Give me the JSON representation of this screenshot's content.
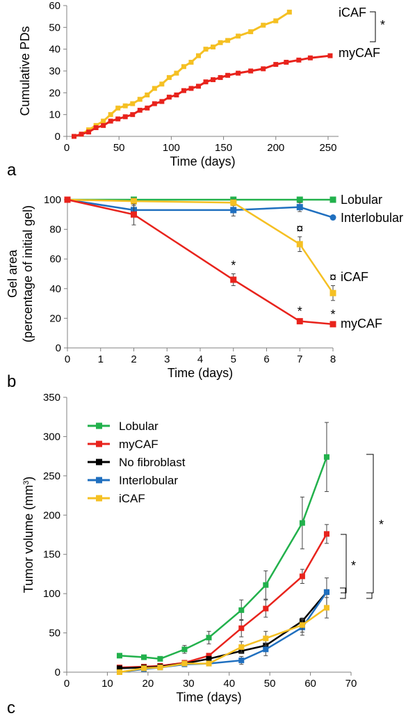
{
  "chart_data": [
    {
      "panel": "a",
      "type": "line",
      "xlabel": "Time (days)",
      "ylabel": "Cumulative PDs",
      "xlim": [
        0,
        260
      ],
      "ylim": [
        0,
        60
      ],
      "xticks": [
        0,
        50,
        100,
        150,
        200,
        250
      ],
      "yticks": [
        0,
        10,
        20,
        30,
        40,
        50,
        60
      ],
      "series": [
        {
          "name": "iCAF",
          "color": "#f5c023",
          "x": [
            7,
            14,
            21,
            28,
            35,
            42,
            49,
            56,
            63,
            70,
            77,
            84,
            91,
            98,
            105,
            112,
            119,
            126,
            133,
            140,
            147,
            154,
            164,
            176,
            188,
            200,
            213
          ],
          "y": [
            0,
            1,
            3,
            5,
            7,
            10,
            13,
            14,
            15,
            17,
            19,
            22,
            24,
            27,
            29,
            32,
            34,
            37,
            40,
            41,
            43,
            44,
            46,
            48,
            51,
            53,
            57
          ]
        },
        {
          "name": "myCAF",
          "color": "#e8231c",
          "x": [
            7,
            14,
            21,
            28,
            35,
            42,
            49,
            56,
            63,
            70,
            77,
            84,
            91,
            98,
            105,
            112,
            119,
            126,
            133,
            140,
            147,
            154,
            164,
            176,
            188,
            200,
            210,
            222,
            233,
            252
          ],
          "y": [
            0,
            1,
            2,
            4,
            5,
            7,
            8,
            9,
            10,
            12,
            13,
            15,
            16,
            18,
            19,
            21,
            22,
            23,
            25,
            26,
            27,
            28,
            29,
            30,
            31,
            33,
            34,
            35,
            36,
            37
          ]
        }
      ],
      "annotations": [
        "*"
      ],
      "grid": false
    },
    {
      "panel": "b",
      "type": "line",
      "xlabel": "Time (days)",
      "ylabel_lines": [
        "Gel area",
        "(percentage of initial gel)"
      ],
      "xlim": [
        0,
        8
      ],
      "ylim": [
        0,
        100
      ],
      "xticks": [
        0,
        1,
        2,
        3,
        4,
        5,
        6,
        7,
        8
      ],
      "yticks": [
        0,
        20,
        40,
        60,
        80,
        100
      ],
      "series": [
        {
          "name": "Lobular",
          "color": "#22b14c",
          "x": [
            0,
            2,
            5,
            7,
            8
          ],
          "y": [
            100,
            100,
            100,
            100,
            100
          ],
          "err": [
            0,
            1,
            1,
            1,
            0
          ]
        },
        {
          "name": "Interlobular",
          "color": "#1f6fbf",
          "x": [
            0,
            2,
            5,
            7,
            8
          ],
          "y": [
            100,
            93,
            93,
            95,
            88
          ],
          "err": [
            0,
            3,
            4,
            3,
            0
          ]
        },
        {
          "name": "iCAF",
          "color": "#f5c023",
          "x": [
            0,
            2,
            5,
            7,
            8
          ],
          "y": [
            100,
            99,
            98,
            70,
            37
          ],
          "err": [
            0,
            2,
            2,
            5,
            5
          ]
        },
        {
          "name": "myCAF",
          "color": "#e8231c",
          "x": [
            0,
            2,
            5,
            7,
            8
          ],
          "y": [
            100,
            90,
            46,
            18,
            16
          ],
          "err": [
            0,
            7,
            4,
            1,
            1
          ]
        }
      ],
      "annotations": [
        {
          "x": 5,
          "y": 46,
          "text": "*"
        },
        {
          "x": 7,
          "y": 18,
          "text": "*"
        },
        {
          "x": 8,
          "y": 16,
          "text": "*"
        },
        {
          "x": 7,
          "y": 70,
          "text": "¤"
        },
        {
          "x": 8,
          "y": 37,
          "text": "¤"
        }
      ],
      "grid": false
    },
    {
      "panel": "c",
      "type": "line",
      "xlabel": "Time (days)",
      "ylabel": "Tumor volume (mm",
      "ylabel_sup": "3",
      "ylabel_end": ")",
      "xlim": [
        0,
        70
      ],
      "ylim": [
        0,
        350
      ],
      "xticks": [
        0,
        10,
        20,
        30,
        40,
        50,
        60,
        70
      ],
      "yticks": [
        0,
        50,
        100,
        150,
        200,
        250,
        300,
        350
      ],
      "legend_position": "top-left",
      "series": [
        {
          "name": "Lobular",
          "color": "#22b14c",
          "x": [
            13,
            19,
            23,
            29,
            35,
            43,
            49,
            58,
            64
          ],
          "y": [
            21,
            19,
            17,
            29,
            44,
            79,
            111,
            190,
            274
          ],
          "err": [
            0,
            0,
            0,
            5,
            8,
            13,
            18,
            33,
            44
          ]
        },
        {
          "name": "myCAF",
          "color": "#e8231c",
          "x": [
            13,
            19,
            23,
            29,
            35,
            43,
            49,
            58,
            64
          ],
          "y": [
            6,
            7,
            8,
            12,
            21,
            56,
            81,
            122,
            176
          ],
          "err": [
            0,
            0,
            0,
            0,
            0,
            11,
            11,
            9,
            12
          ]
        },
        {
          "name": "No fibroblast",
          "color": "#000000",
          "x": [
            13,
            19,
            23,
            29,
            35,
            43,
            49,
            58,
            64
          ],
          "y": [
            5,
            6,
            7,
            11,
            17,
            27,
            34,
            65,
            102
          ],
          "err": [
            0,
            0,
            0,
            0,
            0,
            0,
            0,
            0,
            0
          ]
        },
        {
          "name": "Interlobular",
          "color": "#1f6fbf",
          "x": [
            13,
            19,
            23,
            29,
            35,
            43,
            49,
            58,
            64
          ],
          "y": [
            0,
            4,
            6,
            10,
            11,
            15,
            29,
            57,
            102
          ],
          "err": [
            0,
            0,
            0,
            0,
            0,
            5,
            8,
            10,
            18
          ]
        },
        {
          "name": "iCAF",
          "color": "#f5c023",
          "x": [
            13,
            19,
            23,
            29,
            35,
            43,
            49,
            58,
            64
          ],
          "y": [
            0,
            5,
            6,
            11,
            11,
            32,
            43,
            60,
            82
          ],
          "err": [
            0,
            0,
            0,
            0,
            0,
            7,
            9,
            9,
            13
          ]
        }
      ],
      "annotations": [
        "*",
        "*"
      ],
      "grid": false
    }
  ]
}
